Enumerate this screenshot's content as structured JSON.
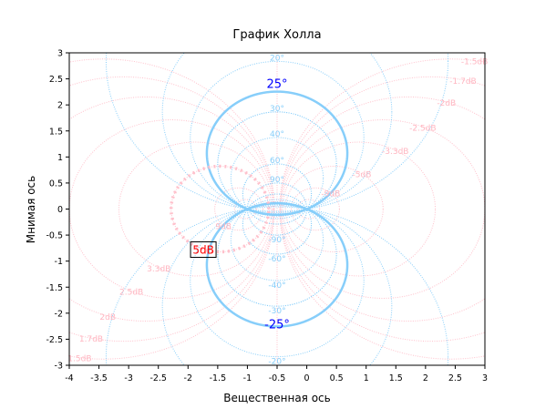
{
  "chart_data": {
    "type": "line",
    "subtype": "hall-chart",
    "title": "График Холла",
    "xlabel": "Вещественная ось",
    "ylabel": "Мнимая ось",
    "xlim": [
      -4,
      3
    ],
    "ylim": [
      -3,
      3
    ],
    "xticks": [
      "-4",
      "-3.5",
      "-3",
      "-2.5",
      "-2",
      "-1.5",
      "-1",
      "-0.5",
      "0",
      "0.5",
      "1",
      "1.5",
      "2",
      "2.5",
      "3"
    ],
    "yticks": [
      "-3",
      "-2.5",
      "-2",
      "-1.5",
      "-1",
      "-0.5",
      "0",
      "0.5",
      "1",
      "1.5",
      "2",
      "2.5",
      "3"
    ],
    "grid": false,
    "m_circles_db": [
      1.5,
      1.7,
      2,
      2.5,
      3.3,
      5,
      9,
      -1.5,
      -1.7,
      -2,
      -2.5,
      -3.3,
      -5,
      -9
    ],
    "m_circle_labels": [
      "1.5dB",
      "1.7dB",
      "2dB",
      "2.5dB",
      "3.3dB",
      "5dB",
      "9dB",
      "-1.5dB",
      "-1.7dB",
      "-2dB",
      "-2.5dB",
      "-3.3dB",
      "-5dB",
      "-9dB"
    ],
    "extra_m_circles_db": [
      15,
      -15,
      0
    ],
    "n_circles_deg": [
      10,
      15,
      20,
      30,
      40,
      60,
      90,
      120,
      150,
      -10,
      -15,
      -20,
      -30,
      -40,
      -60,
      -90,
      -120,
      -150
    ],
    "n_circle_labels": [
      {
        "deg": 20,
        "label": "20°"
      },
      {
        "deg": 30,
        "label": "30°"
      },
      {
        "deg": 40,
        "label": "40°"
      },
      {
        "deg": 60,
        "label": "60°"
      },
      {
        "deg": 90,
        "label": "90°"
      },
      {
        "deg": -20,
        "label": "-20°"
      },
      {
        "deg": -30,
        "label": "-30°"
      },
      {
        "deg": -40,
        "label": "-40°"
      },
      {
        "deg": -60,
        "label": "-60°"
      },
      {
        "deg": -90,
        "label": "-90°"
      }
    ],
    "highlight_m": {
      "db": 5,
      "label": "5dB"
    },
    "highlight_n": [
      {
        "deg": 25,
        "label": "25°"
      },
      {
        "deg": -25,
        "label": "-25°"
      }
    ],
    "colors": {
      "m": "#ffc0cb",
      "m_label": "#ffb6c1",
      "n": "#87cefa",
      "n_highlight_label": "#0000ff",
      "m_highlight_label": "#ff0000"
    }
  }
}
